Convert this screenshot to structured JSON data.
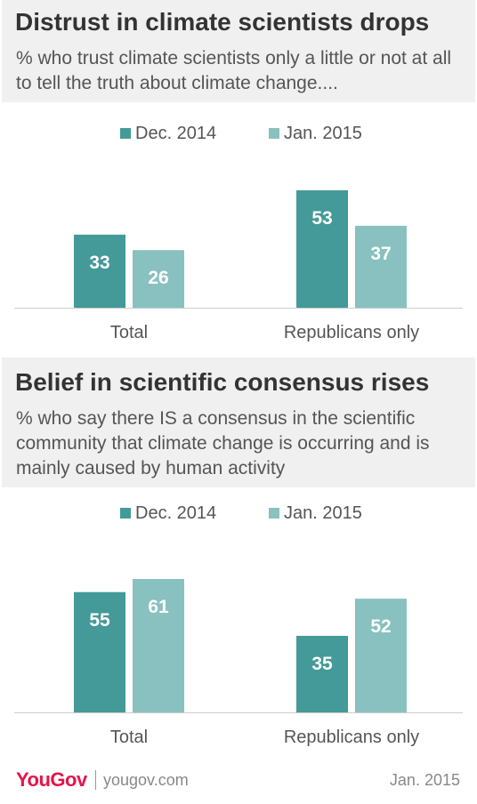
{
  "chart_data": [
    {
      "type": "bar",
      "title": "Distrust in climate scientists drops",
      "subtitle": "% who trust climate scientists only a little or not at all to tell the truth about climate change....",
      "categories": [
        "Total",
        "Republicans only"
      ],
      "series": [
        {
          "name": "Dec. 2014",
          "values": [
            33,
            53
          ],
          "color": "#439a98"
        },
        {
          "name": "Jan. 2015",
          "values": [
            26,
            37
          ],
          "color": "#88c1bf"
        }
      ],
      "ylim": [
        0,
        53
      ],
      "grid": false,
      "legend": "top-center"
    },
    {
      "type": "bar",
      "title": "Belief in scientific consensus rises",
      "subtitle": "% who say there IS a consensus in the scientific community that climate change is occurring and is mainly caused by human activity",
      "categories": [
        "Total",
        "Republicans only"
      ],
      "series": [
        {
          "name": "Dec. 2014",
          "values": [
            55,
            35
          ],
          "color": "#439a98"
        },
        {
          "name": "Jan. 2015",
          "values": [
            61,
            52
          ],
          "color": "#88c1bf"
        }
      ],
      "ylim": [
        0,
        61
      ],
      "grid": false,
      "legend": "top-center"
    }
  ],
  "footer": {
    "brand": "YouGov",
    "site": "yougov.com",
    "date": "Jan. 2015"
  },
  "colors": {
    "axis": "#cccccc",
    "label_text": "#555555",
    "bar_label": "#ffffff"
  }
}
